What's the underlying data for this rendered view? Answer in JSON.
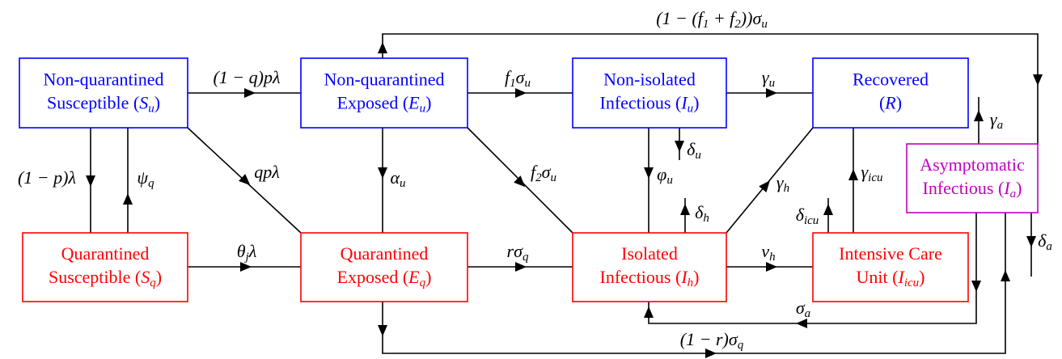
{
  "nodes": [
    {
      "color": "#0000ff",
      "lines": [
        [
          "Non-quarantined"
        ],
        [
          "Susceptible (",
          [
            "S",
            "u"
          ],
          ")"
        ]
      ]
    },
    {
      "color": "#0000ff",
      "lines": [
        [
          "Non-quarantined"
        ],
        [
          "Exposed (",
          [
            "E",
            "u"
          ],
          ")"
        ]
      ]
    },
    {
      "color": "#0000ff",
      "lines": [
        [
          "Non-isolated"
        ],
        [
          "Infectious (",
          [
            "I",
            "u"
          ],
          ")"
        ]
      ]
    },
    {
      "color": "#0000ff",
      "lines": [
        [
          "Recovered"
        ],
        [
          "(",
          [
            "R"
          ],
          ")"
        ]
      ]
    },
    {
      "color": "#c000c0",
      "lines": [
        [
          "Asymptomatic"
        ],
        [
          "Infectious (",
          [
            "I",
            "a"
          ],
          ")"
        ]
      ]
    },
    {
      "color": "#ff0000",
      "lines": [
        [
          "Quarantined"
        ],
        [
          "Susceptible (",
          [
            "S",
            "q"
          ],
          ")"
        ]
      ]
    },
    {
      "color": "#ff0000",
      "lines": [
        [
          "Quarantined"
        ],
        [
          "Exposed (",
          [
            "E",
            "q"
          ],
          ")"
        ]
      ]
    },
    {
      "color": "#ff0000",
      "lines": [
        [
          "Isolated"
        ],
        [
          "Infectious (",
          [
            "I",
            "h"
          ],
          ")"
        ]
      ]
    },
    {
      "color": "#ff0000",
      "lines": [
        [
          "Intensive Care"
        ],
        [
          "Unit (",
          [
            "I",
            "icu"
          ],
          ")"
        ]
      ]
    }
  ],
  "edge_labels": [
    [
      "(1 − q)pλ"
    ],
    [
      [
        "f",
        "1"
      ],
      [
        "σ",
        "u"
      ]
    ],
    [
      [
        "γ",
        "u"
      ]
    ],
    [
      "(1 − p)λ"
    ],
    [
      [
        "ψ",
        "q"
      ]
    ],
    [
      "qpλ"
    ],
    [
      [
        "α",
        "u"
      ]
    ],
    [
      [
        "f",
        "2"
      ],
      [
        "σ",
        "u"
      ]
    ],
    [
      [
        "φ",
        "u"
      ]
    ],
    [
      [
        "δ",
        "u"
      ]
    ],
    [
      [
        "δ",
        "h"
      ]
    ],
    [
      [
        "γ",
        "h"
      ]
    ],
    [
      [
        "γ",
        "icu"
      ]
    ],
    [
      [
        "δ",
        "icu"
      ]
    ],
    [
      [
        "γ",
        "a"
      ]
    ],
    [
      [
        "δ",
        "a"
      ]
    ],
    [
      "(1 − (",
      [
        "f",
        "1"
      ],
      " + ",
      [
        "f",
        "2"
      ],
      "))",
      [
        "σ",
        "u"
      ]
    ],
    [
      [
        "θ",
        "j"
      ],
      "λ"
    ],
    [
      "r",
      [
        "σ",
        "q"
      ]
    ],
    [
      [
        "ν",
        "h"
      ]
    ],
    [
      [
        "σ",
        "a"
      ]
    ],
    [
      "(1 − r)",
      [
        "σ",
        "q"
      ]
    ]
  ]
}
